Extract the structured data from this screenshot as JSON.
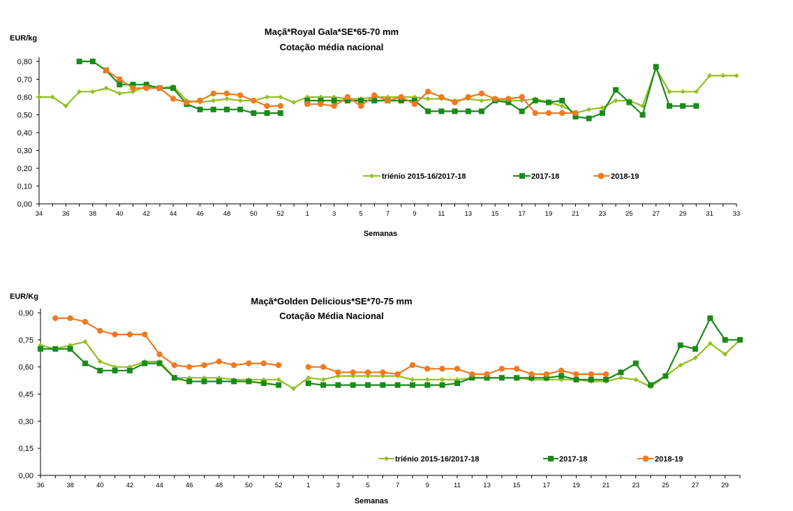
{
  "charts": [
    {
      "type": "line",
      "title_line1": "Maçã*Royal Gala*SE*65-70 mm",
      "title_line2": "Cotação média nacional",
      "ylabel": "EUR/kg",
      "xlabel": "Semanas",
      "ylim": [
        0,
        0.8
      ],
      "yticks": [
        "0,00",
        "0,10",
        "0,20",
        "0,30",
        "0,40",
        "0,50",
        "0,60",
        "0,70",
        "0,80"
      ],
      "x_tick_labels": [
        "34",
        "36",
        "38",
        "40",
        "42",
        "44",
        "46",
        "48",
        "50",
        "52",
        "1",
        "3",
        "5",
        "7",
        "9",
        "11",
        "13",
        "15",
        "17",
        "19",
        "21",
        "23",
        "25",
        "27",
        "29",
        "31",
        "33"
      ],
      "weeks": [
        "34",
        "35",
        "36",
        "37",
        "38",
        "39",
        "40",
        "41",
        "42",
        "43",
        "44",
        "45",
        "46",
        "47",
        "48",
        "49",
        "50",
        "51",
        "52",
        "53",
        "1",
        "2",
        "3",
        "4",
        "5",
        "6",
        "7",
        "8",
        "9",
        "10",
        "11",
        "12",
        "13",
        "14",
        "15",
        "16",
        "17",
        "18",
        "19",
        "20",
        "21",
        "22",
        "23",
        "24",
        "25",
        "26",
        "27",
        "28",
        "29",
        "30",
        "31",
        "32",
        "33"
      ],
      "legend_placement": "bottom-right",
      "series": [
        {
          "name": "triénio 2015-16/2017-18",
          "color": "#92c01f",
          "marker": "diamond",
          "values": [
            0.6,
            0.6,
            0.55,
            0.63,
            0.63,
            0.65,
            0.62,
            0.63,
            0.66,
            0.65,
            0.66,
            0.58,
            0.57,
            0.58,
            0.59,
            0.58,
            0.58,
            0.6,
            0.6,
            0.57,
            0.6,
            0.6,
            0.6,
            0.59,
            0.59,
            0.6,
            0.6,
            0.6,
            0.6,
            0.59,
            0.59,
            0.58,
            0.59,
            0.58,
            0.59,
            0.58,
            0.58,
            0.59,
            0.57,
            0.55,
            0.51,
            0.53,
            0.54,
            0.58,
            0.58,
            0.55,
            0.76,
            0.63,
            0.63,
            0.63,
            0.72,
            0.72,
            0.72
          ]
        },
        {
          "name": "2017-18",
          "color": "#1a8a1a",
          "marker": "square",
          "values": [
            null,
            null,
            null,
            0.8,
            0.8,
            0.75,
            0.67,
            0.67,
            0.67,
            0.65,
            0.65,
            0.56,
            0.53,
            0.53,
            0.53,
            0.53,
            0.51,
            0.51,
            0.51,
            null,
            0.58,
            0.58,
            0.58,
            0.58,
            0.58,
            0.58,
            0.58,
            0.58,
            0.58,
            0.52,
            0.52,
            0.52,
            0.52,
            0.52,
            0.58,
            0.57,
            0.52,
            0.58,
            0.57,
            0.58,
            0.49,
            0.48,
            0.51,
            0.64,
            0.57,
            0.5,
            0.77,
            0.55,
            0.55,
            0.55,
            null,
            null,
            null
          ]
        },
        {
          "name": "2018-19",
          "color": "#f07a22",
          "marker": "circle",
          "values": [
            null,
            null,
            null,
            null,
            null,
            0.75,
            0.7,
            0.65,
            0.65,
            0.65,
            0.59,
            0.57,
            0.58,
            0.62,
            0.62,
            0.61,
            0.58,
            0.55,
            0.55,
            null,
            0.56,
            0.56,
            0.55,
            0.6,
            0.55,
            0.61,
            0.58,
            0.6,
            0.56,
            0.63,
            0.6,
            0.57,
            0.6,
            0.62,
            0.59,
            0.59,
            0.6,
            0.51,
            0.51,
            0.51,
            0.51,
            null,
            null,
            null,
            null,
            null,
            null,
            null,
            null,
            null,
            null,
            null,
            null
          ]
        }
      ]
    },
    {
      "type": "line",
      "title_line1": "Maçã*Golden Delicious*SE*70-75 mm",
      "title_line2": "Cotação Média Nacional",
      "ylabel": "EUR/Kg",
      "xlabel": "Semanas",
      "ylim": [
        0,
        0.9
      ],
      "yticks": [
        "0,00",
        "0,15",
        "0,30",
        "0,45",
        "0,60",
        "0,75",
        "0,90"
      ],
      "x_tick_labels": [
        "36",
        "38",
        "40",
        "42",
        "44",
        "46",
        "48",
        "50",
        "52",
        "1",
        "3",
        "5",
        "7",
        "9",
        "11",
        "13",
        "15",
        "17",
        "19",
        "21",
        "23",
        "25",
        "27",
        "29"
      ],
      "weeks": [
        "36",
        "37",
        "38",
        "39",
        "40",
        "41",
        "42",
        "43",
        "44",
        "45",
        "46",
        "47",
        "48",
        "49",
        "50",
        "51",
        "52",
        "53",
        "1",
        "2",
        "3",
        "4",
        "5",
        "6",
        "7",
        "8",
        "9",
        "10",
        "11",
        "12",
        "13",
        "14",
        "15",
        "16",
        "17",
        "18",
        "19",
        "20",
        "21",
        "22",
        "23",
        "24",
        "25",
        "26",
        "27",
        "28",
        "29",
        "30"
      ],
      "legend_placement": "bottom-right",
      "series": [
        {
          "name": "triénio 2015-16/2017-18",
          "color": "#92c01f",
          "marker": "diamond",
          "values": [
            0.72,
            0.7,
            0.72,
            0.74,
            0.63,
            0.6,
            0.6,
            0.63,
            0.63,
            0.54,
            0.54,
            0.54,
            0.54,
            0.53,
            0.53,
            0.53,
            0.53,
            0.48,
            0.54,
            0.53,
            0.55,
            0.55,
            0.55,
            0.55,
            0.55,
            0.53,
            0.53,
            0.53,
            0.53,
            0.54,
            0.54,
            0.54,
            0.54,
            0.53,
            0.53,
            0.53,
            0.53,
            0.52,
            0.52,
            0.54,
            0.53,
            0.49,
            0.55,
            0.61,
            0.65,
            0.73,
            0.67,
            0.75
          ]
        },
        {
          "name": "2017-18",
          "color": "#1a8a1a",
          "marker": "square",
          "values": [
            0.7,
            0.7,
            0.7,
            0.62,
            0.58,
            0.58,
            0.58,
            0.62,
            0.62,
            0.54,
            0.52,
            0.52,
            0.52,
            0.52,
            0.52,
            0.51,
            0.5,
            null,
            0.51,
            0.5,
            0.5,
            0.5,
            0.5,
            0.5,
            0.5,
            0.5,
            0.5,
            0.5,
            0.51,
            0.54,
            0.54,
            0.54,
            0.54,
            0.54,
            0.54,
            0.55,
            0.53,
            0.53,
            0.53,
            0.57,
            0.62,
            0.5,
            0.55,
            0.72,
            0.7,
            0.87,
            0.75,
            0.75
          ]
        },
        {
          "name": "2018-19",
          "color": "#f07a22",
          "marker": "circle",
          "values": [
            null,
            0.87,
            0.87,
            0.85,
            0.8,
            0.78,
            0.78,
            0.78,
            0.67,
            0.61,
            0.6,
            0.61,
            0.63,
            0.61,
            0.62,
            0.62,
            0.61,
            null,
            0.6,
            0.6,
            0.57,
            0.57,
            0.57,
            0.57,
            0.56,
            0.61,
            0.59,
            0.59,
            0.59,
            0.56,
            0.56,
            0.59,
            0.59,
            0.56,
            0.56,
            0.58,
            0.56,
            0.56,
            0.56,
            null,
            null,
            null,
            null,
            null,
            null,
            null,
            null,
            null
          ]
        }
      ]
    }
  ]
}
